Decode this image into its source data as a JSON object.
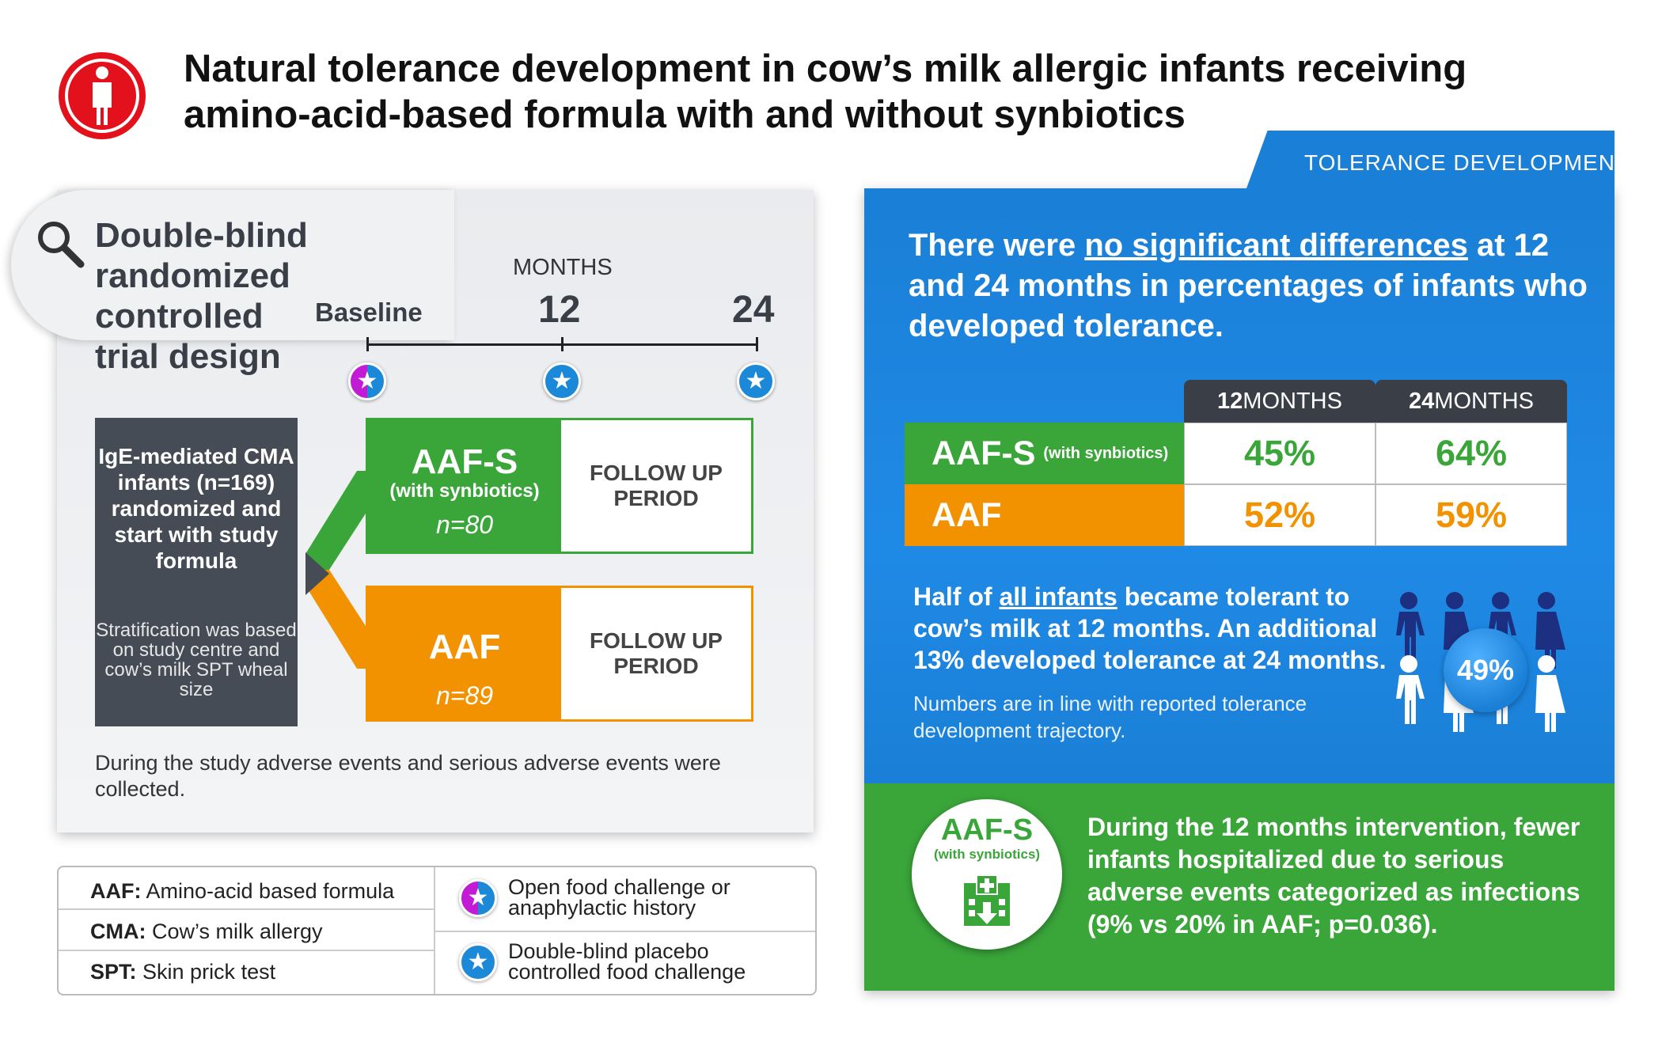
{
  "title": "Natural tolerance development in cow’s milk allergic infants receiving amino-acid-based formula with and without synbiotics",
  "colors": {
    "green": "#3aa63a",
    "orange": "#f39200",
    "blue": "#1a7fd6",
    "dark": "#454c56",
    "violet": "#c21bd6",
    "red": "#e3111b"
  },
  "left": {
    "design_title": "Double-blind randomized controlled trial design",
    "timeline": {
      "months_label": "MONTHS",
      "baseline": "Baseline",
      "m12": "12",
      "m24": "24"
    },
    "population": "IgE-mediated CMA infants (n=169) randomized and start with study formula",
    "stratification": "Stratification was based on study centre and cow’s milk SPT wheal size",
    "arm_s": {
      "name": "AAF-S",
      "sub": "(with synbiotics)",
      "n": "n=80",
      "follow": "FOLLOW UP PERIOD"
    },
    "arm_a": {
      "name": "AAF",
      "n": "n=89",
      "follow": "FOLLOW UP PERIOD"
    },
    "note": "During the study adverse events and serious adverse events were collected."
  },
  "legend": {
    "aaf_abbr": "AAF:",
    "aaf_text": "Amino-acid based formula",
    "cma_abbr": "CMA:",
    "cma_text": "Cow’s milk allergy",
    "spt_abbr": "SPT:",
    "spt_text": "Skin prick test",
    "open_text": "Open food challenge or anaphylactic history",
    "dbpc_text": "Double-blind placebo controlled food challenge"
  },
  "right": {
    "tab": "TOLERANCE DEVELOPMENT",
    "headline_pre": "There were ",
    "headline_u": "no significant differences",
    "headline_post": " at 12 and 24 months in percentages of infants who developed tolerance.",
    "table": {
      "col1_bold": "12",
      "col1_rest": " MONTHS",
      "col2_bold": "24",
      "col2_rest": " MONTHS",
      "rows": [
        {
          "label": "AAF-S",
          "sub": "(with synbiotics)",
          "v12": "45%",
          "v24": "64%"
        },
        {
          "label": "AAF",
          "sub": "",
          "v12": "52%",
          "v24": "59%"
        }
      ]
    },
    "half_pre": "Half of ",
    "half_u": "all infants",
    "half_post": " became tolerant to cow’s milk at 12 months. An additional 13% developed tolerance at 24 months.",
    "numbers": "Numbers are in line with reported tolerance development trajectory.",
    "pct": "49%",
    "circle_name": "AAF-S",
    "circle_sub": "(with synbiotics)",
    "green_text": "During the 12 months intervention, fewer infants hospitalized due to serious adverse events categorized as infections (9% vs 20% in AAF; p=0.036)."
  }
}
